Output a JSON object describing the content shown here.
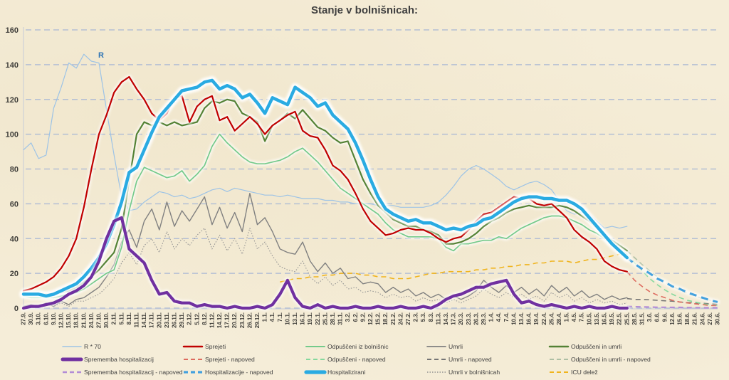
{
  "chart_data": {
    "type": "line",
    "title": "Stanje v bolnišnicah:",
    "ylim": [
      0,
      160
    ],
    "y_ticks": [
      0,
      20,
      40,
      60,
      80,
      100,
      120,
      140,
      160
    ],
    "grid": "horizontal-dashed",
    "legend_position": "bottom",
    "annotation": {
      "text": "R",
      "color": "#2e74b5"
    },
    "colors": {
      "background": "#f5edd8",
      "gridline": "#b4bfd4",
      "axis_line": "#c6cbd8",
      "axis_text": "#3f3e3a"
    },
    "x_labels": [
      "27.9.",
      "30.9.",
      "3.10.",
      "6.10.",
      "9.10.",
      "12.10.",
      "15.10.",
      "18.10.",
      "21.10.",
      "24.10.",
      "27.10.",
      "30.10.",
      "2.11.",
      "5.11.",
      "8.11.",
      "11.11.",
      "14.11.",
      "17.11.",
      "20.11.",
      "23.11.",
      "26.11.",
      "29.11.",
      "2.12.",
      "5.12.",
      "8.12.",
      "11.12.",
      "14.12.",
      "17.12.",
      "20.12.",
      "23.12.",
      "26.12.",
      "29.12.",
      "1.1.",
      "4.1.",
      "7.1.",
      "10.1.",
      "13.1.",
      "16.1.",
      "19.1.",
      "22.1.",
      "25.1.",
      "28.1.",
      "31.1.",
      "3.2.",
      "6.2.",
      "9.2.",
      "12.2.",
      "15.2.",
      "18.2.",
      "21.2.",
      "24.2.",
      "27.2.",
      "2.3.",
      "5.3.",
      "8.3.",
      "11.3.",
      "14.3.",
      "17.3.",
      "20.3.",
      "23.3.",
      "26.3.",
      "29.3.",
      "1.4.",
      "4.4.",
      "7.4.",
      "10.4.",
      "13.4.",
      "16.4.",
      "19.4.",
      "22.4.",
      "25.4.",
      "28.4.",
      "1.5.",
      "4.5.",
      "7.5.",
      "10.5.",
      "13.5.",
      "16.5.",
      "19.5.",
      "22.5.",
      "25.5.",
      "28.5.",
      "31.5.",
      "3.6.",
      "6.6.",
      "9.6.",
      "12.6.",
      "15.6.",
      "18.6.",
      "21.6.",
      "24.6.",
      "27.6.",
      "30.6."
    ],
    "series": [
      {
        "key": "r70",
        "name": "R * 70",
        "color": "#9dc3e6",
        "width": 1.2,
        "style": "solid",
        "start": 0,
        "values": [
          91,
          95,
          86,
          88,
          115,
          127,
          141,
          138,
          146,
          142,
          141,
          114,
          88,
          64,
          56,
          57,
          61,
          64,
          67,
          66,
          64,
          65,
          63,
          64,
          66,
          68,
          69,
          67,
          69,
          68,
          67,
          66,
          65,
          65,
          64,
          65,
          64,
          63,
          63,
          63,
          62,
          62,
          61,
          61,
          60,
          60,
          60,
          59,
          59,
          59,
          58,
          58,
          58,
          58,
          59,
          61,
          65,
          70,
          76,
          80,
          82,
          80,
          77,
          74,
          70,
          68,
          70,
          72,
          73,
          71,
          68,
          62,
          56,
          54,
          55,
          54,
          50,
          46,
          47,
          46,
          47
        ]
      },
      {
        "key": "icu_delez",
        "name": "ICU delež",
        "color": "#f0b41e",
        "width": 1.6,
        "style": "dashed",
        "start": 34,
        "values": [
          15,
          16,
          17,
          17,
          18,
          18,
          19,
          19,
          20,
          20,
          20,
          19,
          19,
          18,
          18,
          17,
          17,
          17,
          18,
          19,
          20,
          20,
          21,
          21,
          21,
          21,
          22,
          22,
          23,
          23,
          24,
          24,
          25,
          25,
          26,
          26,
          27,
          27,
          27,
          26,
          27,
          28,
          28,
          29,
          30,
          31,
          31
        ]
      },
      {
        "key": "umrli_v_bolnisnicah",
        "name": "Umrli v bolnišnicah",
        "color": "#949494",
        "width": 1.1,
        "style": "dotted",
        "start": 0,
        "values": [
          0,
          1,
          1,
          2,
          1,
          3,
          1,
          4,
          4,
          6,
          8,
          12,
          17,
          26,
          32,
          25,
          36,
          40,
          32,
          44,
          34,
          40,
          36,
          42,
          46,
          34,
          42,
          33,
          40,
          31,
          46,
          34,
          38,
          30,
          24,
          22,
          21,
          27,
          18,
          14,
          18,
          13,
          16,
          11,
          12,
          9,
          10,
          9,
          6,
          8,
          6,
          7,
          4,
          6,
          4,
          5,
          3,
          5,
          3,
          5,
          7,
          11,
          8,
          6,
          9,
          6,
          8,
          5,
          7,
          4,
          9,
          6,
          8,
          4,
          6,
          3,
          5,
          3,
          4,
          2,
          3
        ]
      },
      {
        "key": "umrli",
        "name": "Umrli",
        "color": "#808080",
        "width": 1.4,
        "style": "solid",
        "start": 0,
        "values": [
          1,
          2,
          1,
          3,
          1,
          4,
          2,
          5,
          6,
          9,
          12,
          18,
          25,
          38,
          45,
          35,
          50,
          57,
          45,
          61,
          47,
          56,
          50,
          57,
          64,
          48,
          58,
          46,
          55,
          44,
          66,
          48,
          52,
          44,
          34,
          32,
          31,
          38,
          27,
          21,
          26,
          20,
          23,
          17,
          18,
          14,
          15,
          14,
          9,
          12,
          9,
          11,
          7,
          9,
          6,
          8,
          5,
          7,
          5,
          7,
          10,
          16,
          12,
          9,
          13,
          9,
          12,
          8,
          11,
          7,
          13,
          9,
          12,
          7,
          10,
          6,
          8,
          5,
          7,
          5,
          6
        ]
      },
      {
        "key": "sprememba_hospitalizacij_napoved",
        "name": "Sprememba hospitalizacij - napoved",
        "color": "#b28cd6",
        "width": 2.2,
        "style": "dashed",
        "start": 80,
        "values": [
          1,
          0.8,
          0.7,
          0.6,
          0.5,
          0.5,
          0.4,
          0.4,
          0.3,
          0.3,
          0.2,
          0.2,
          0.2
        ]
      },
      {
        "key": "umrli_napoved",
        "name": "Umrli - napoved",
        "color": "#757575",
        "width": 1.6,
        "style": "dashed",
        "start": 80,
        "values": [
          5.5,
          5,
          5,
          4.8,
          4.5,
          4.2,
          4,
          3.5,
          3.2,
          3,
          2.8,
          2.5,
          2.2
        ]
      },
      {
        "key": "odpusceni_in_umrli_napoved",
        "name": "Odpuščeni in umrli - napoved",
        "color": "#aebfa4",
        "width": 1.6,
        "style": "dashed",
        "start": 80,
        "values": [
          33,
          29,
          25,
          21.5,
          18,
          15,
          12.5,
          10.5,
          8.5,
          7,
          5.5,
          4.5,
          3.5
        ]
      },
      {
        "key": "odpusceni_napoved",
        "name": "Odpuščeni - napoved",
        "color": "#85d89d",
        "width": 1.6,
        "style": "dashed",
        "start": 80,
        "values": [
          31,
          26,
          21.5,
          17,
          13.5,
          10.5,
          8,
          6,
          4.5,
          3.5,
          2.5,
          2,
          1.5
        ]
      },
      {
        "key": "sprejeti_napoved",
        "name": "Sprejeti - napoved",
        "color": "#dd6b5f",
        "width": 1.6,
        "style": "dashed",
        "start": 80,
        "values": [
          21,
          16,
          12.5,
          9.5,
          7.5,
          6,
          4.5,
          3.5,
          3,
          2.5,
          2,
          1.5,
          1.5
        ]
      },
      {
        "key": "hospitalizacije_napoved",
        "name": "Hospitalizacije - napoved",
        "color": "#44a1de",
        "width": 3,
        "style": "dashed",
        "start": 80,
        "halo": true,
        "values": [
          29,
          25.5,
          22.5,
          20,
          17,
          15,
          12.5,
          11,
          9,
          7.5,
          6,
          4.5,
          3.5
        ]
      },
      {
        "key": "odpusceni_iz_bolnisnic",
        "name": "Odpuščeni iz bolnišnic",
        "color": "#74ca8a",
        "width": 1.7,
        "style": "solid",
        "start": 0,
        "halo": true,
        "values": [
          7,
          6,
          6,
          6,
          6,
          7,
          8,
          9,
          11,
          14,
          17,
          20,
          22,
          35,
          56,
          73,
          81,
          79,
          77,
          75,
          76,
          79,
          73,
          77,
          82,
          93,
          100,
          95,
          91,
          87,
          84,
          83,
          83,
          84,
          85,
          87,
          90,
          92,
          88,
          84,
          79,
          74,
          69,
          66,
          63,
          60,
          57,
          54,
          49,
          45,
          43,
          41,
          41,
          41,
          41,
          40,
          35,
          33,
          37,
          37,
          38,
          39,
          39,
          41,
          40,
          43,
          46,
          48,
          50,
          52,
          53,
          53,
          52,
          50,
          48,
          45,
          43,
          40,
          37,
          34,
          31
        ]
      },
      {
        "key": "odpusceni_in_umrli",
        "name": "Odpuščeni in umrli",
        "color": "#548235",
        "width": 2.2,
        "style": "solid",
        "start": 0,
        "halo": true,
        "values": [
          9,
          8,
          8,
          8,
          8,
          9,
          10,
          12,
          15,
          18,
          22,
          27,
          32,
          46,
          73,
          100,
          107,
          105,
          107,
          105,
          107,
          105,
          106,
          107,
          115,
          119,
          118,
          120,
          119,
          112,
          110,
          107,
          96,
          105,
          108,
          112,
          109,
          114,
          109,
          104,
          102,
          98,
          95,
          96,
          85,
          74,
          66,
          59,
          55,
          51,
          49,
          47,
          47,
          45,
          44,
          42,
          37,
          37,
          38,
          40,
          43,
          47,
          50,
          52,
          55,
          57,
          58,
          59,
          58,
          58,
          58,
          59,
          58,
          56,
          53,
          50,
          46,
          42,
          39,
          36,
          33
        ]
      },
      {
        "key": "sprejeti",
        "name": "Sprejeti",
        "color": "#c00000",
        "width": 2.2,
        "style": "solid",
        "start": 0,
        "halo": true,
        "values": [
          10,
          11,
          13,
          15,
          18,
          23,
          30,
          40,
          58,
          80,
          100,
          111,
          124,
          130,
          133,
          126,
          120,
          112,
          108,
          112,
          121,
          122,
          107,
          116,
          120,
          122,
          108,
          110,
          102,
          106,
          110,
          106,
          100,
          105,
          108,
          111,
          113,
          102,
          99,
          98,
          91,
          82,
          79,
          74,
          66,
          57,
          50,
          46,
          42,
          43,
          45,
          46,
          45,
          45,
          43,
          40,
          38,
          40,
          41,
          45,
          50,
          54,
          55,
          58,
          61,
          64,
          63,
          63,
          60,
          59,
          60,
          56,
          52,
          45,
          41,
          38,
          34,
          27,
          24,
          22,
          21
        ]
      },
      {
        "key": "hospitalizirani",
        "name": "Hospitalizirani",
        "color": "#2aabe2",
        "width": 4.5,
        "style": "solid",
        "start": 0,
        "halo": true,
        "glow": true,
        "values": [
          8,
          8,
          8,
          7,
          8,
          10,
          12,
          14,
          18,
          23,
          29,
          37,
          48,
          61,
          78,
          81,
          91,
          101,
          110,
          115,
          120,
          125,
          126,
          127,
          130,
          131,
          126,
          128,
          126,
          121,
          123,
          118,
          112,
          121,
          119,
          117,
          127,
          124,
          121,
          116,
          118,
          111,
          107,
          103,
          95,
          85,
          74,
          64,
          57,
          54,
          52,
          50,
          51,
          49,
          49,
          47,
          45,
          46,
          45,
          47,
          48,
          51,
          52,
          55,
          58,
          61,
          63,
          64,
          64,
          63,
          63,
          62,
          62,
          60,
          57,
          52,
          47,
          42,
          37,
          33,
          29
        ]
      },
      {
        "key": "sprememba_hospitalizacij",
        "name": "Sprememba hospitalizacij",
        "color": "#7030a0",
        "width": 4.2,
        "style": "solid",
        "start": 0,
        "halo": true,
        "values": [
          0,
          1,
          1,
          2,
          3,
          5,
          8,
          10,
          13,
          18,
          27,
          40,
          50,
          52,
          34,
          30,
          26,
          16,
          8,
          9,
          4,
          3,
          3,
          1,
          2,
          1,
          1,
          0,
          1,
          0,
          0,
          1,
          0,
          2,
          8,
          16,
          6,
          1,
          0,
          2,
          0,
          1,
          0,
          0,
          1,
          0,
          0,
          1,
          0,
          0,
          1,
          0,
          0,
          1,
          0,
          2,
          5,
          7,
          8,
          10,
          12,
          12,
          14,
          15,
          16,
          8,
          3,
          4,
          2,
          1,
          2,
          1,
          0,
          1,
          0,
          1,
          0,
          0,
          1,
          0,
          0
        ]
      }
    ],
    "legend": [
      [
        "r70",
        "sprejeti",
        "odpusceni_iz_bolnisnic",
        "umrli",
        "odpusceni_in_umrli"
      ],
      [
        "sprememba_hospitalizacij",
        "sprejeti_napoved",
        "odpusceni_napoved",
        "umrli_napoved",
        "odpusceni_in_umrli_napoved"
      ],
      [
        "sprememba_hospitalizacij_napoved",
        "hospitalizacije_napoved",
        "hospitalizirani",
        "umrli_v_bolnisnicah",
        "icu_delez"
      ]
    ]
  }
}
